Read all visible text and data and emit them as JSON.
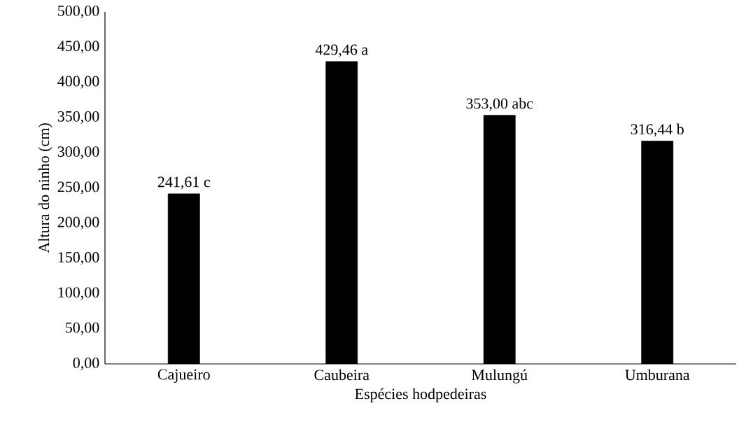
{
  "chart_data": {
    "type": "bar",
    "categories": [
      "Cajueiro",
      "Caubeira",
      "Mulungú",
      "Umburana"
    ],
    "values": [
      241.61,
      429.46,
      353.0,
      316.44
    ],
    "value_labels": [
      "241,61 c",
      "429,46 a",
      "353,00 abc",
      "316,44 b"
    ],
    "color": "#000000",
    "xlabel": "Espécies  hodpedeiras",
    "ylabel": "Altura do ninho (cm)",
    "ylim": [
      0,
      500
    ],
    "yticks": [
      {
        "value": 0,
        "label": "0,00"
      },
      {
        "value": 50,
        "label": "50,00"
      },
      {
        "value": 100,
        "label": "100,00"
      },
      {
        "value": 150,
        "label": "150,00"
      },
      {
        "value": 200,
        "label": "200,00"
      },
      {
        "value": 250,
        "label": "250,00"
      },
      {
        "value": 300,
        "label": "300,00"
      },
      {
        "value": 350,
        "label": "350,00"
      },
      {
        "value": 400,
        "label": "400,00"
      },
      {
        "value": 450,
        "label": "450,00"
      },
      {
        "value": 500,
        "label": "500,00"
      }
    ]
  }
}
